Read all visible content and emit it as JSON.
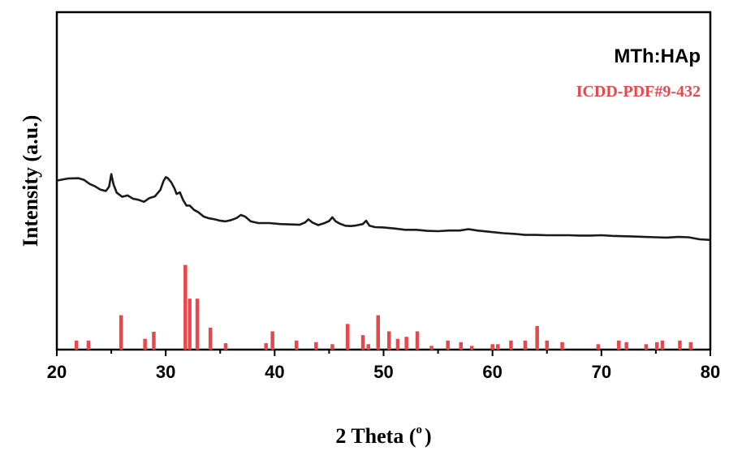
{
  "chart_data": {
    "type": "line",
    "xlabel": "2 Theta (",
    "xlabel_deg": "o",
    "xlabel_close": ")",
    "ylabel": "Intensity (a.u.)",
    "xlim": [
      20,
      80
    ],
    "ylim": [
      0,
      100
    ],
    "x_ticks": [
      20,
      30,
      40,
      50,
      60,
      70,
      80
    ],
    "grid": false,
    "legend_position": "top-right",
    "legend": {
      "main": "MTh:HAp",
      "reference": "ICDD-PDF#9-432"
    },
    "colors": {
      "pattern": "#1a1a1a",
      "reference": "#e8474b"
    },
    "series": [
      {
        "name": "MTh:HAp",
        "style": "line",
        "x": [
          20,
          21,
          22,
          22.5,
          23,
          23.5,
          24,
          24.5,
          24.8,
          25,
          25.2,
          25.5,
          26,
          26.5,
          27,
          27.5,
          28,
          28.5,
          29,
          29.5,
          29.8,
          30,
          30.2,
          30.5,
          30.8,
          31,
          31.3,
          31.6,
          31.9,
          32.2,
          32.6,
          33,
          33.5,
          34,
          34.5,
          35,
          35.5,
          36,
          36.5,
          36.9,
          37.3,
          37.8,
          38.5,
          39.5,
          40.5,
          41.5,
          42.3,
          42.8,
          43.1,
          43.5,
          44,
          44.5,
          45,
          45.3,
          45.6,
          46,
          46.5,
          47,
          47.5,
          48.1,
          48.4,
          48.7,
          49.2,
          50,
          51,
          52,
          53,
          54,
          55,
          56,
          57,
          57.8,
          58.6,
          59.5,
          61,
          62,
          63,
          64,
          65,
          66,
          67,
          68,
          69,
          70,
          71,
          72,
          73,
          74,
          75,
          76,
          77,
          78,
          79,
          80
        ],
        "y": [
          50.1,
          50.7,
          50.8,
          50.3,
          49.1,
          48.4,
          47.4,
          47,
          48.3,
          52,
          49,
          46.5,
          45.3,
          45.7,
          44.7,
          44.4,
          43.8,
          44.9,
          45.4,
          47.3,
          50,
          51.1,
          50.8,
          49.6,
          47.8,
          46.1,
          46.6,
          44.3,
          42.7,
          42.7,
          41.4,
          40.7,
          39.4,
          38.9,
          38.6,
          38.2,
          38,
          38.4,
          39,
          39.9,
          39.4,
          38,
          37.5,
          37.5,
          37.2,
          37.1,
          37,
          37.7,
          38.6,
          37.6,
          36.9,
          37.4,
          38.1,
          39.2,
          38,
          37.3,
          36.7,
          36.6,
          36.8,
          37.2,
          38.2,
          36.7,
          36.3,
          36.2,
          35.9,
          35.5,
          35.5,
          35.2,
          35.1,
          35.3,
          35.3,
          35.7,
          35.3,
          35,
          34.5,
          34.3,
          34,
          34,
          33.9,
          33.9,
          33.9,
          33.8,
          33.8,
          33.9,
          33.7,
          33.6,
          33.5,
          33.4,
          33.3,
          33.2,
          33.4,
          33.3,
          32.7,
          32.5
        ]
      },
      {
        "name": "ICDD-PDF#9-432",
        "style": "stick",
        "x": [
          21.8,
          22.9,
          25.9,
          28.1,
          28.9,
          31.8,
          32.2,
          32.9,
          34.1,
          35.5,
          39.2,
          39.8,
          42.0,
          43.8,
          45.3,
          46.7,
          48.1,
          48.6,
          49.5,
          50.5,
          51.3,
          52.1,
          53.1,
          54.4,
          55.9,
          57.1,
          58.1,
          60.0,
          60.5,
          61.7,
          63.0,
          64.1,
          65.0,
          66.4,
          69.7,
          71.6,
          72.3,
          74.1,
          75.1,
          75.6,
          77.2,
          78.2
        ],
        "y": [
          2.7,
          2.7,
          10.2,
          3.2,
          5.3,
          25.1,
          15.1,
          15.1,
          6.5,
          1.9,
          1.9,
          5.4,
          2.7,
          2.2,
          1.6,
          7.6,
          4.3,
          1.6,
          10.2,
          5.4,
          3.2,
          3.8,
          5.4,
          1.1,
          2.7,
          2.2,
          1.1,
          1.6,
          1.6,
          2.7,
          2.7,
          7.0,
          2.7,
          2.2,
          1.6,
          2.7,
          2.2,
          1.6,
          2.2,
          2.7,
          2.7,
          2.2
        ]
      }
    ]
  }
}
